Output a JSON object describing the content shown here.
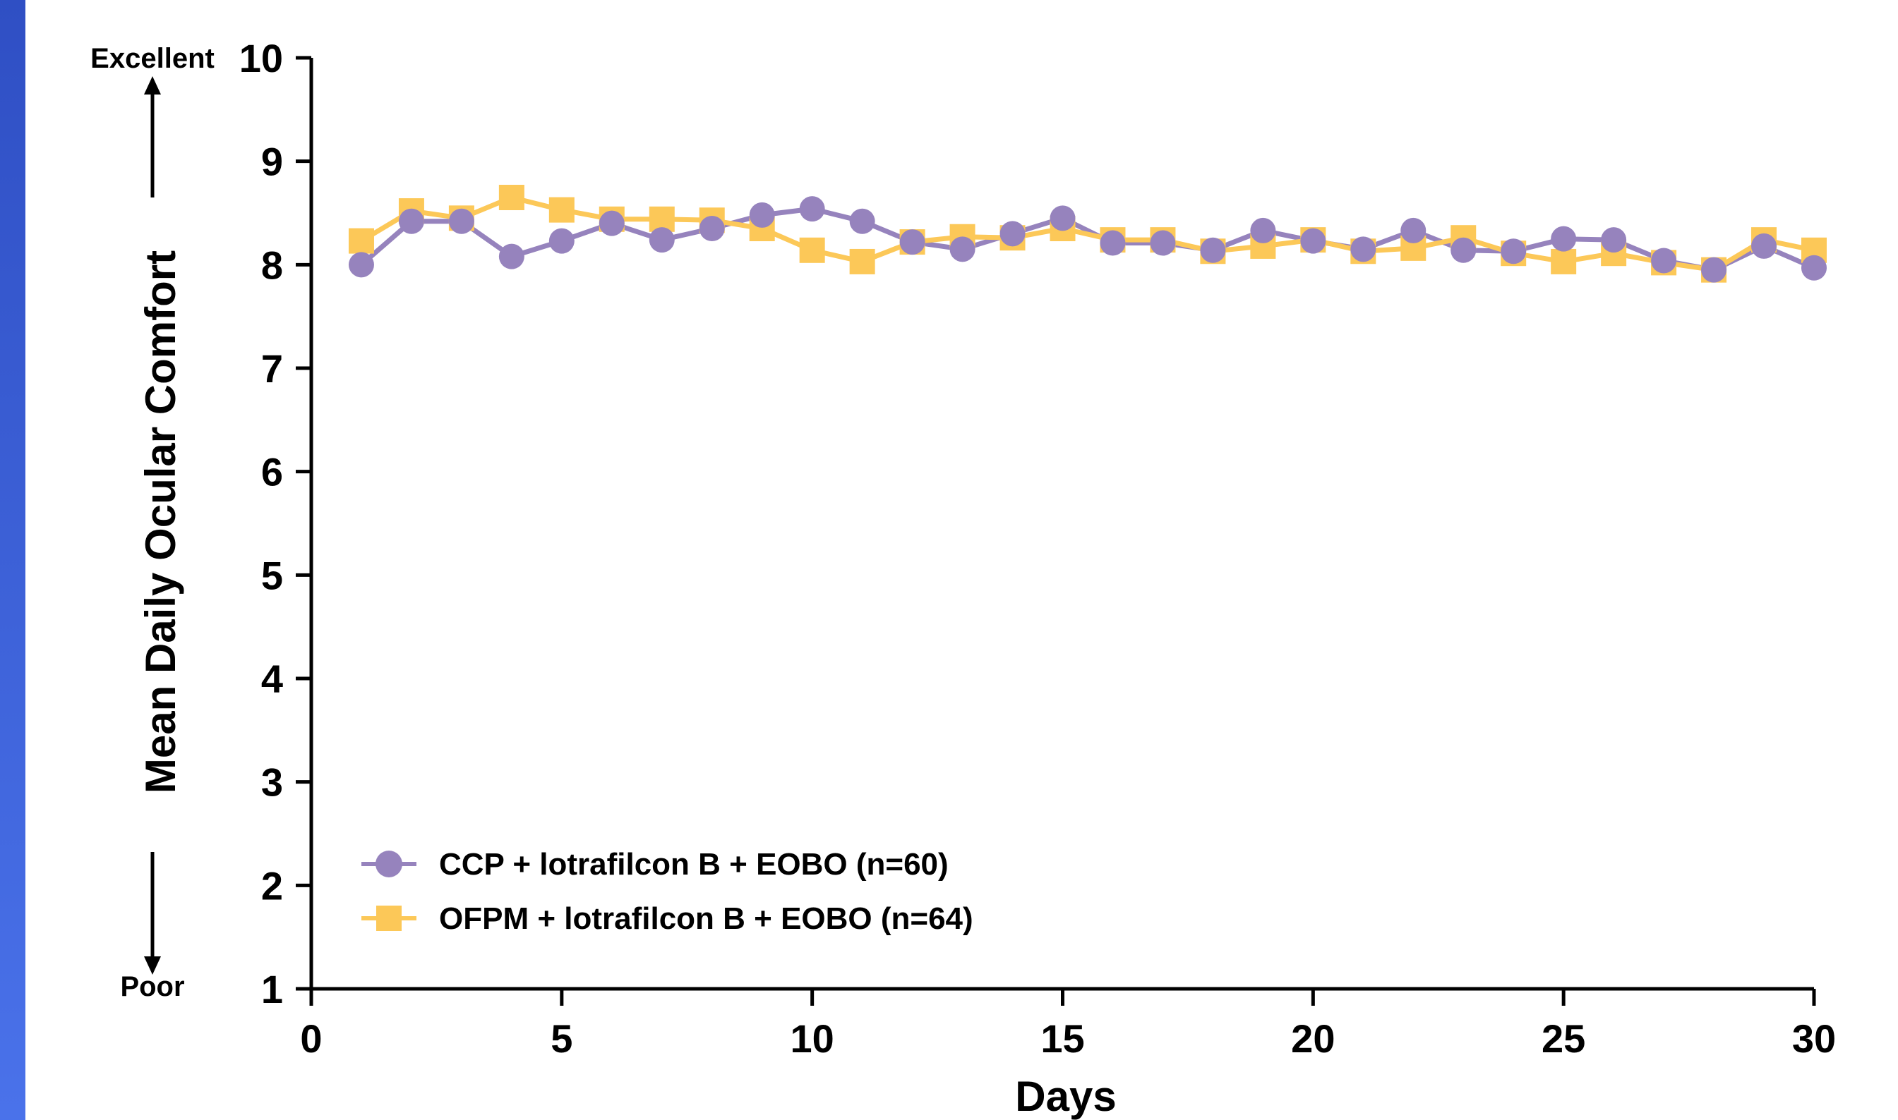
{
  "chart_data": {
    "type": "line",
    "title": "",
    "xlabel": "Days",
    "ylabel": "Mean Daily Ocular Comfort",
    "y_top_anchor_label": "Excellent",
    "y_bottom_anchor_label": "Poor",
    "xlim": [
      0,
      30
    ],
    "ylim": [
      1,
      10
    ],
    "x_ticks": [
      0,
      5,
      10,
      15,
      20,
      25,
      30
    ],
    "y_ticks": [
      1,
      2,
      3,
      4,
      5,
      6,
      7,
      8,
      9,
      10
    ],
    "grid": false,
    "legend_position": "bottom-left",
    "x": [
      1,
      2,
      3,
      4,
      5,
      6,
      7,
      8,
      9,
      10,
      11,
      12,
      13,
      14,
      15,
      16,
      17,
      18,
      19,
      20,
      21,
      22,
      23,
      24,
      25,
      26,
      27,
      28,
      29,
      30
    ],
    "series": [
      {
        "name": "CCP + lotrafilcon B + EOBO (n=60)",
        "color": "#9683bd",
        "marker": "circle",
        "values": [
          8.0,
          8.42,
          8.42,
          8.08,
          8.23,
          8.4,
          8.24,
          8.35,
          8.48,
          8.54,
          8.42,
          8.22,
          8.15,
          8.3,
          8.45,
          8.21,
          8.21,
          8.14,
          8.33,
          8.23,
          8.15,
          8.33,
          8.14,
          8.13,
          8.25,
          8.24,
          8.04,
          7.95,
          8.18,
          7.97
        ]
      },
      {
        "name": "OFPM + lotrafilcon B + EOBO (n=64)",
        "color": "#fcc858",
        "marker": "square",
        "values": [
          8.23,
          8.52,
          8.45,
          8.65,
          8.53,
          8.44,
          8.44,
          8.43,
          8.35,
          8.14,
          8.03,
          8.22,
          8.27,
          8.26,
          8.35,
          8.24,
          8.24,
          8.13,
          8.18,
          8.24,
          8.13,
          8.16,
          8.26,
          8.11,
          8.03,
          8.11,
          8.02,
          7.95,
          8.24,
          8.14
        ]
      }
    ]
  }
}
